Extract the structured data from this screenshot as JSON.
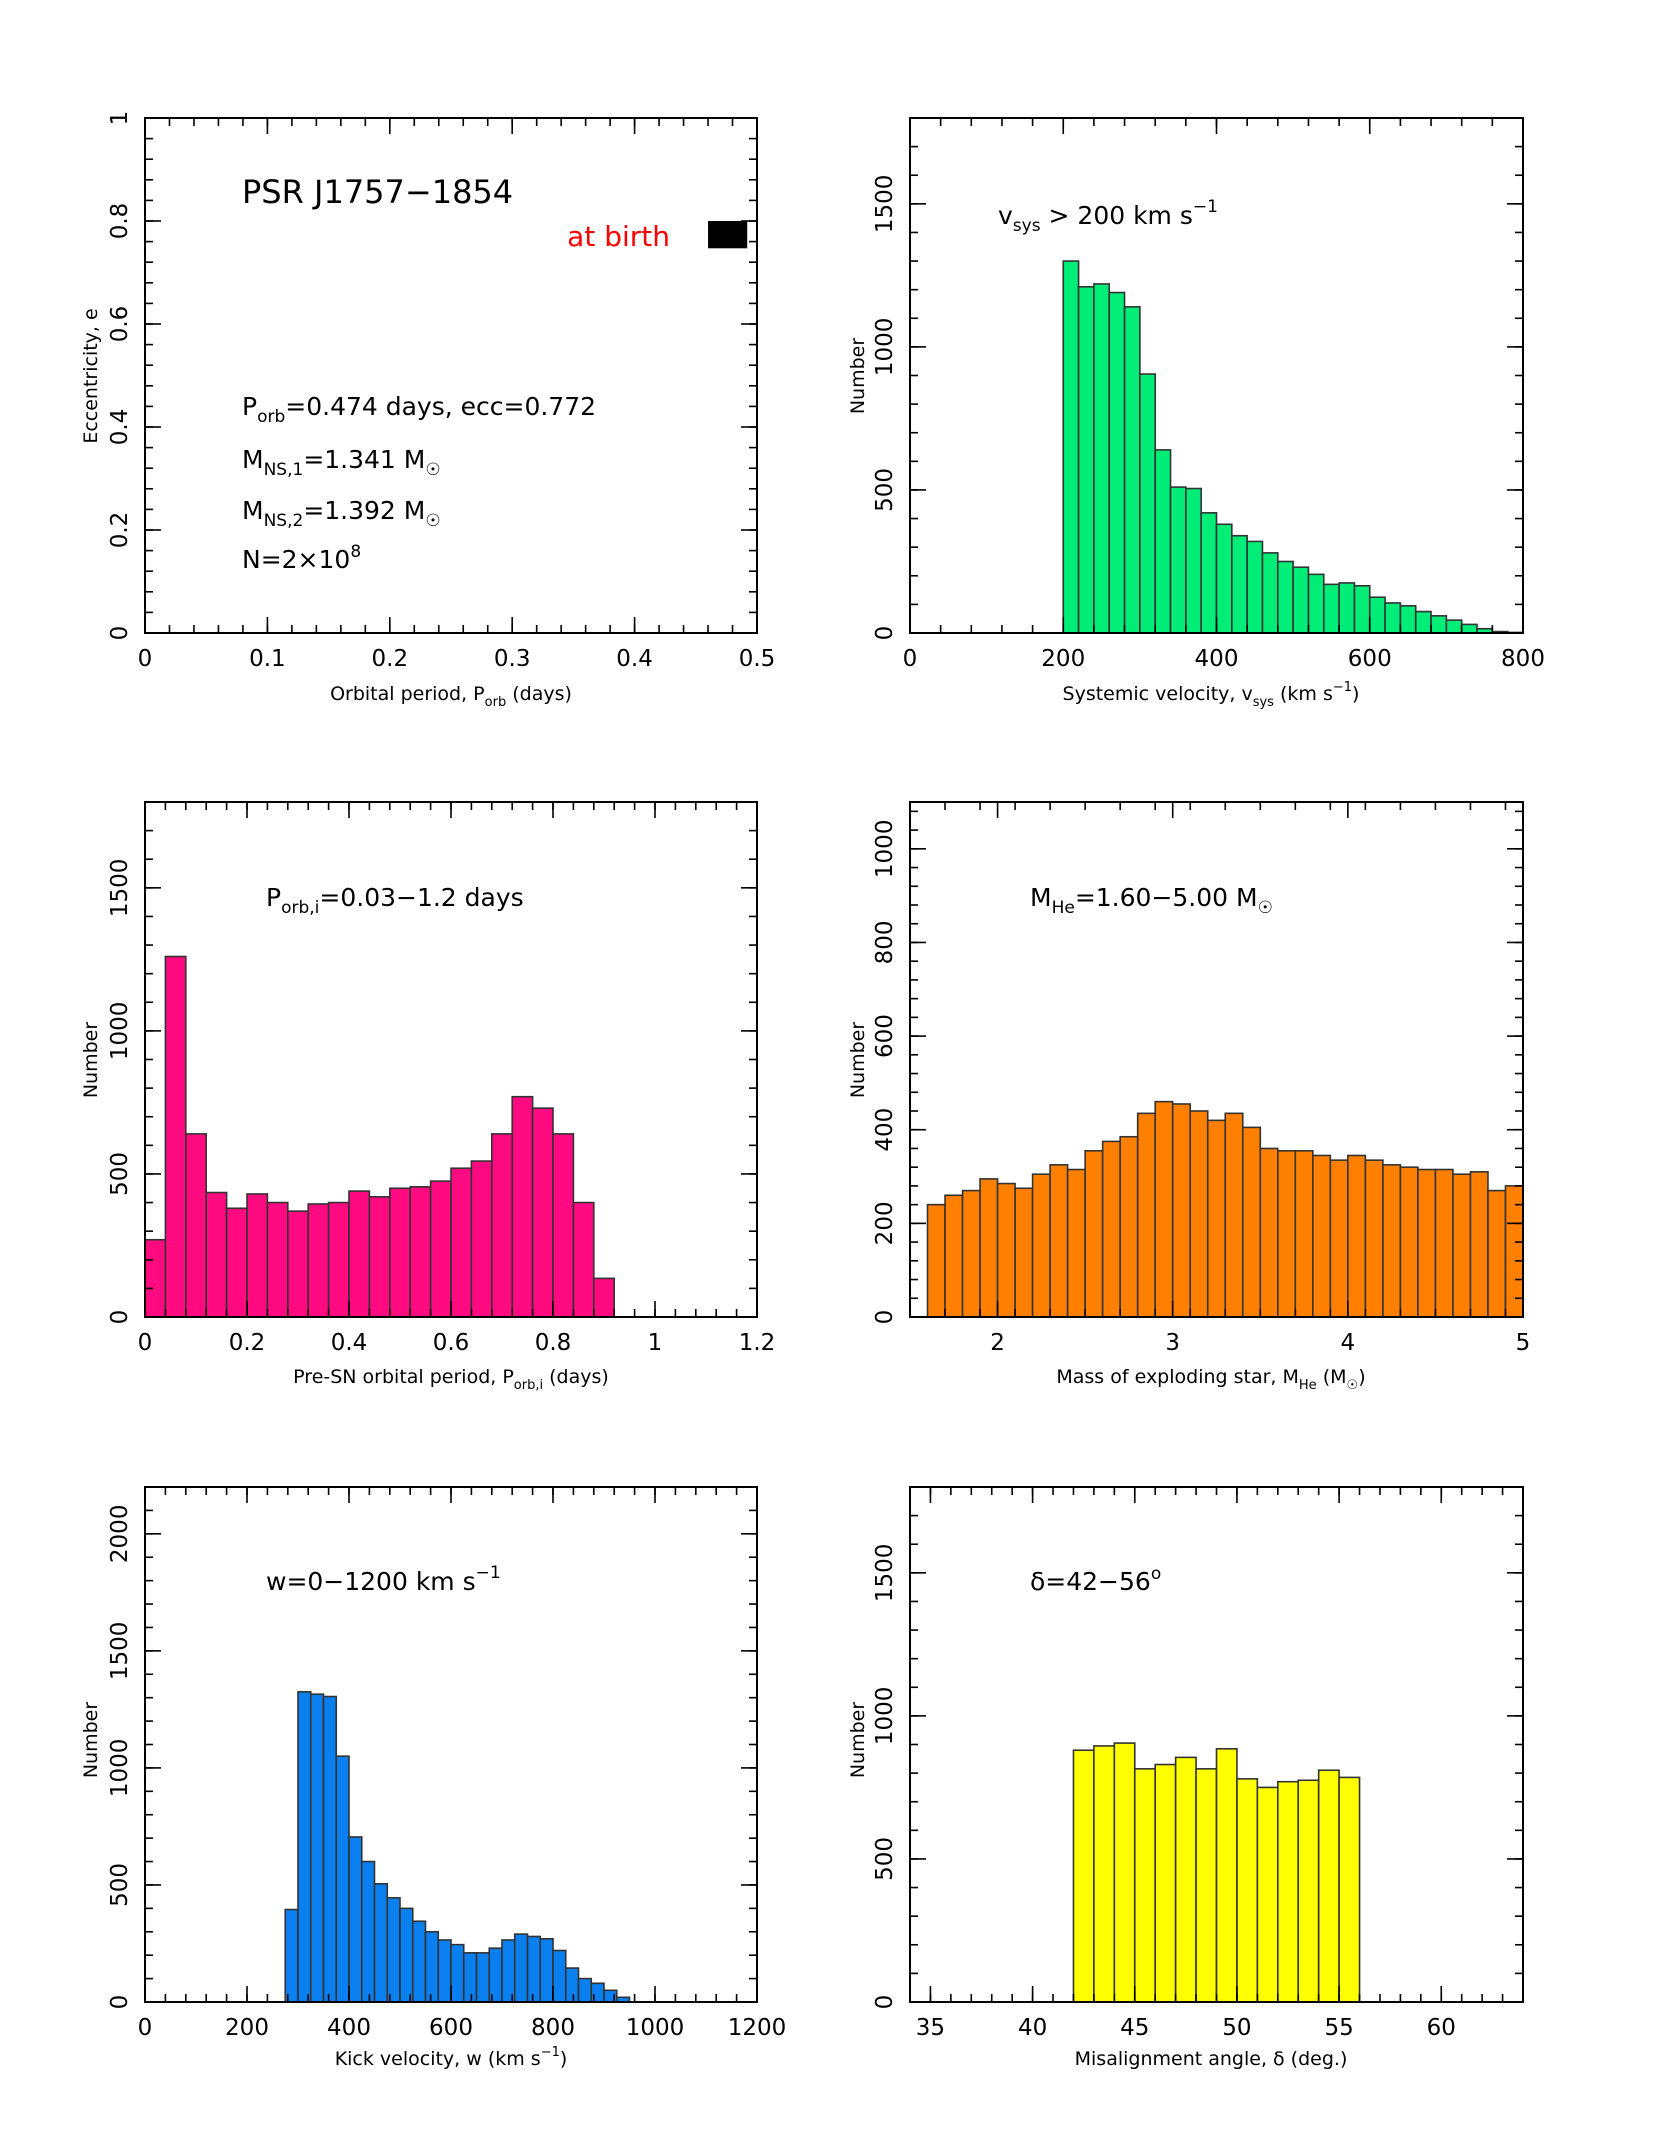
{
  "chart_data": [
    {
      "id": "p1",
      "type": "scatter",
      "xlabel": "Orbital period, P_orb (days)",
      "ylabel": "Eccentricity, e",
      "xlim": [
        0,
        0.5
      ],
      "ylim": [
        0,
        1
      ],
      "xticks": [
        0,
        0.1,
        0.2,
        0.3,
        0.4,
        0.5
      ],
      "yticks": [
        0,
        0.2,
        0.4,
        0.6,
        0.8,
        1
      ],
      "xticklabels": [
        "0",
        "0.1",
        "0.2",
        "0.3",
        "0.4",
        "0.5"
      ],
      "yticklabels": [
        "0",
        "0.2",
        "0.4",
        "0.6",
        "0.8",
        "1"
      ],
      "title": "PSR J1757−1854",
      "annotation": "at birth",
      "annotation_color": "#ff0000",
      "region": {
        "x": [
          0.46,
          0.492
        ],
        "y": [
          0.747,
          0.8
        ]
      },
      "info": [
        "P_orb=0.474 days,   ecc=0.772",
        "M_NS,1=1.341 M☉",
        "M_NS,2=1.392 M☉",
        "N=2×10^8"
      ]
    },
    {
      "id": "p2",
      "type": "bar",
      "xlabel": "Systemic velocity, v_sys (km s^−1)",
      "ylabel": "Number",
      "xlim": [
        0,
        800
      ],
      "ylim": [
        0,
        1800
      ],
      "xticks": [
        0,
        200,
        400,
        600,
        800
      ],
      "yticks": [
        0,
        500,
        1000,
        1500
      ],
      "annotation": "v_sys > 200 km s^−1",
      "color": "#00ee77",
      "bin_start": 200,
      "bin_width": 20,
      "values": [
        1300,
        1210,
        1220,
        1190,
        1140,
        905,
        640,
        510,
        505,
        420,
        380,
        340,
        320,
        280,
        250,
        230,
        205,
        170,
        175,
        165,
        125,
        105,
        95,
        75,
        60,
        45,
        30,
        15,
        5,
        2
      ]
    },
    {
      "id": "p3",
      "type": "bar",
      "xlabel": "Pre-SN orbital period, P_orb,i (days)",
      "ylabel": "Number",
      "xlim": [
        0,
        1.2
      ],
      "ylim": [
        0,
        1800
      ],
      "xticks": [
        0,
        0.2,
        0.4,
        0.6,
        0.8,
        1,
        1.2
      ],
      "yticks": [
        0,
        500,
        1000,
        1500
      ],
      "annotation": "P_orb,i=0.03−1.2 days",
      "color": "#ff0a80",
      "bin_start": 0,
      "bin_width": 0.04,
      "values": [
        270,
        1260,
        640,
        435,
        380,
        430,
        400,
        370,
        395,
        400,
        440,
        420,
        450,
        455,
        475,
        520,
        545,
        640,
        770,
        730,
        640,
        400,
        135,
        0,
        0,
        0,
        0,
        0,
        0,
        0
      ]
    },
    {
      "id": "p4",
      "type": "bar",
      "xlabel": "Mass of exploding star, M_He (M☉)",
      "ylabel": "Number",
      "xlim": [
        1.5,
        5
      ],
      "ylim": [
        0,
        1100
      ],
      "xticks": [
        2,
        3,
        4,
        5
      ],
      "yticks": [
        0,
        200,
        400,
        600,
        800,
        1000
      ],
      "annotation": "M_He=1.60−5.00 M☉",
      "color": "#ff8000",
      "bin_start": 1.6,
      "bin_width": 0.1,
      "values": [
        240,
        260,
        270,
        295,
        285,
        275,
        305,
        325,
        315,
        355,
        375,
        385,
        435,
        460,
        455,
        440,
        420,
        435,
        405,
        360,
        355,
        355,
        345,
        335,
        345,
        335,
        325,
        320,
        315,
        315,
        305,
        310,
        270,
        280
      ]
    },
    {
      "id": "p5",
      "type": "bar",
      "xlabel": "Kick velocity, w (km s^−1)",
      "ylabel": "Number",
      "xlim": [
        0,
        1200
      ],
      "ylim": [
        0,
        2200
      ],
      "xticks": [
        0,
        200,
        400,
        600,
        800,
        1000,
        1200
      ],
      "yticks": [
        0,
        500,
        1000,
        1500,
        2000
      ],
      "annotation": "w=0−1200 km s^−1",
      "color": "#0a80f0",
      "bin_start": 275,
      "bin_width": 25,
      "values": [
        395,
        1325,
        1315,
        1305,
        1050,
        705,
        600,
        505,
        445,
        400,
        345,
        300,
        265,
        245,
        210,
        210,
        230,
        265,
        290,
        280,
        270,
        220,
        145,
        100,
        80,
        50,
        20
      ]
    },
    {
      "id": "p6",
      "type": "bar",
      "xlabel": "Misalignment angle, δ (deg.)",
      "ylabel": "Number",
      "xlim": [
        34,
        64
      ],
      "ylim": [
        0,
        1800
      ],
      "xticks": [
        35,
        40,
        45,
        50,
        55,
        60
      ],
      "yticks": [
        0,
        500,
        1000,
        1500
      ],
      "annotation": "δ=42−56°",
      "color": "#ffff00",
      "bin_start": 42,
      "bin_width": 1,
      "values": [
        880,
        895,
        905,
        815,
        830,
        855,
        815,
        885,
        780,
        750,
        770,
        775,
        810,
        785
      ]
    }
  ]
}
